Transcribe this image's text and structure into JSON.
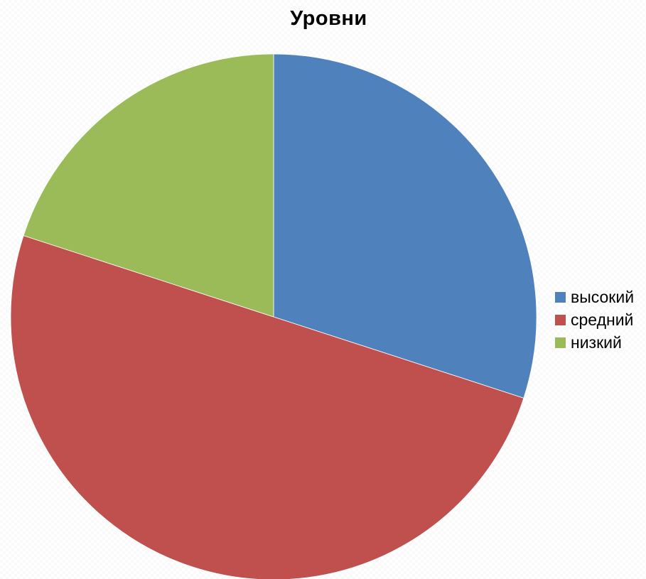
{
  "chart_data": {
    "type": "pie",
    "title": "Уровни",
    "categories": [
      "высокий",
      "средний",
      "низкий"
    ],
    "values": [
      30,
      50,
      20
    ],
    "colors": [
      "#4f81bd",
      "#c0504d",
      "#9bbb59"
    ],
    "start_angle": "12 o'clock",
    "direction": "clockwise",
    "legend_position": "right"
  }
}
